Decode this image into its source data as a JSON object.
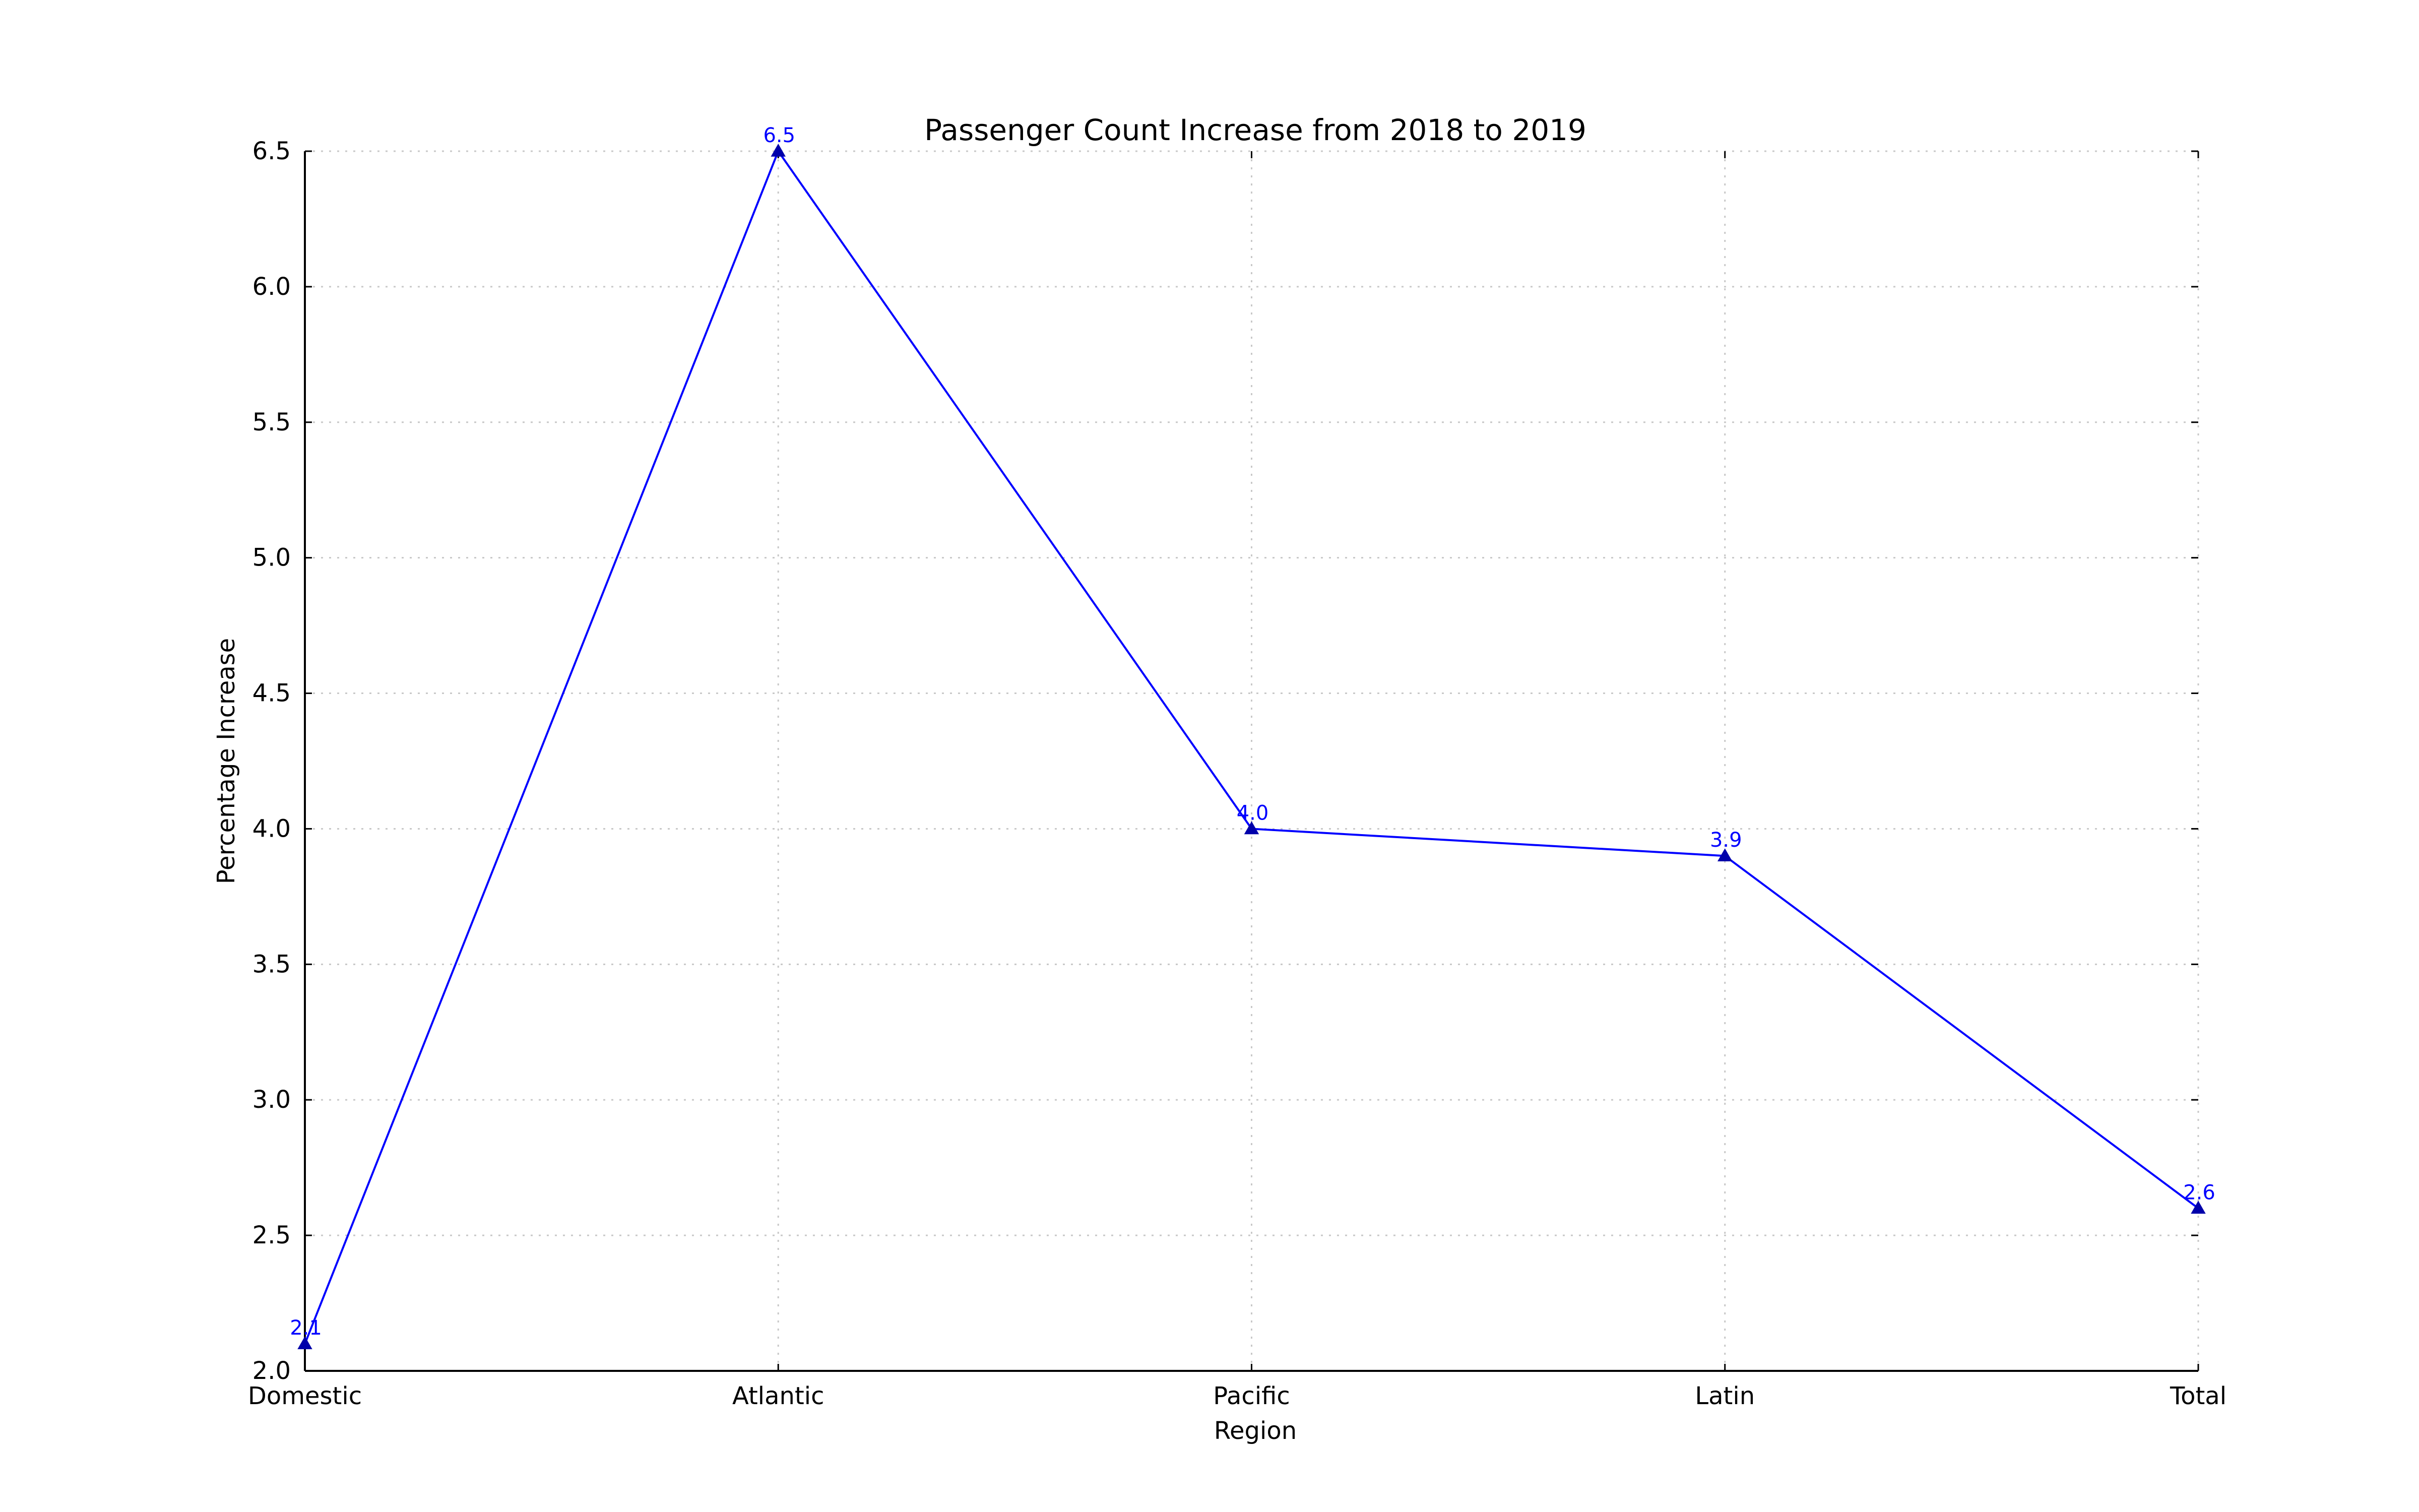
{
  "chart_data": {
    "type": "line",
    "title": "Passenger Count Increase from 2018 to 2019",
    "xlabel": "Region",
    "ylabel": "Percentage Increase",
    "categories": [
      "Domestic",
      "Atlantic",
      "Pacific",
      "Latin",
      "Total"
    ],
    "series": [
      {
        "values": [
          2.1,
          6.5,
          4.0,
          3.9,
          2.6
        ]
      }
    ],
    "data_labels": [
      "2.1",
      "6.5",
      "4.0",
      "3.9",
      "2.6"
    ],
    "ylim": [
      2.0,
      6.5
    ],
    "yticks": [
      2.0,
      2.5,
      3.0,
      3.5,
      4.0,
      4.5,
      5.0,
      5.5,
      6.0,
      6.5
    ],
    "ytick_labels": [
      "2.0",
      "2.5",
      "3.0",
      "3.5",
      "4.0",
      "4.5",
      "5.0",
      "5.5",
      "6.0",
      "6.5"
    ],
    "grid": true,
    "marker": "triangle-up",
    "line_color": "#0000ff",
    "marker_color": "#0000aa"
  }
}
